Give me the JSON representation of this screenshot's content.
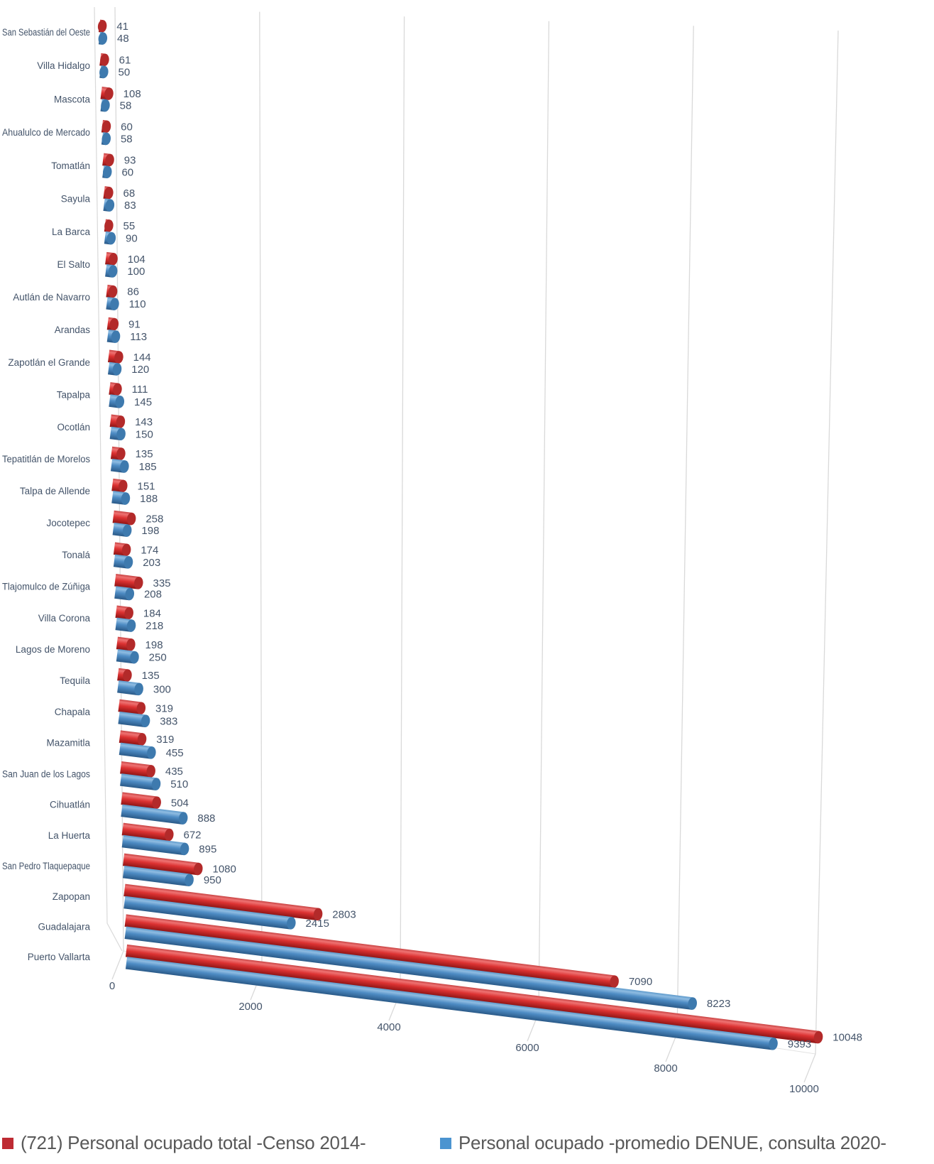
{
  "chart_data": {
    "type": "bar",
    "orientation": "horizontal",
    "style": "3d-cylinder",
    "title": "",
    "xlabel": "",
    "ylabel": "",
    "xticks": [
      0,
      2000,
      4000,
      6000,
      8000,
      10000
    ],
    "xlim": [
      0,
      10000
    ],
    "grid": true,
    "legend_position": "bottom",
    "categories": [
      "San Sebastián del Oeste",
      "Villa Hidalgo",
      "Mascota",
      "Ahualulco de Mercado",
      "Tomatlán",
      "Sayula",
      "La Barca",
      "El Salto",
      "Autlán de Navarro",
      "Arandas",
      "Zapotlán el Grande",
      "Tapalpa",
      "Ocotlán",
      "Tepatitlán de Morelos",
      "Talpa de Allende",
      "Jocotepec",
      "Tonalá",
      "Tlajomulco de Zúñiga",
      "Villa Corona",
      "Lagos de Moreno",
      "Tequila",
      "Chapala",
      "Mazamitla",
      "San Juan de los Lagos",
      "Cihuatlán",
      "La Huerta",
      "San Pedro Tlaquepaque",
      "Zapopan",
      "Guadalajara",
      "Puerto Vallarta"
    ],
    "series": [
      {
        "name": "(721) Personal ocupado total -Censo 2014-",
        "values": [
          41,
          61,
          108,
          60,
          93,
          68,
          55,
          104,
          86,
          91,
          144,
          111,
          143,
          135,
          151,
          258,
          174,
          335,
          184,
          198,
          135,
          319,
          319,
          435,
          504,
          672,
          1080,
          2803,
          7090,
          10048
        ],
        "fill": {
          "stops": [
            "#C84444",
            "#EE7272",
            "#DC3232",
            "#8E1414"
          ],
          "cap": "#B32A2A",
          "marker": "#BE2B33"
        }
      },
      {
        "name": "Personal ocupado -promedio DENUE, consulta 2020-",
        "values": [
          48,
          50,
          58,
          58,
          60,
          83,
          90,
          100,
          110,
          113,
          120,
          145,
          150,
          185,
          188,
          198,
          203,
          208,
          218,
          250,
          300,
          383,
          455,
          510,
          888,
          895,
          950,
          2415,
          8223,
          9393
        ],
        "fill": {
          "stops": [
            "#5E9ACB",
            "#8FBCE2",
            "#4E8CC4",
            "#2A5A88"
          ],
          "cap": "#3E7AAE",
          "marker": "#4B94D0"
        }
      }
    ],
    "colors": {
      "gridline": "#D9D9D9",
      "floor_edge": "#E2E2E2",
      "axis_labels": "#44546A",
      "value_labels": "#44546A",
      "legend_text": "#595959"
    }
  }
}
